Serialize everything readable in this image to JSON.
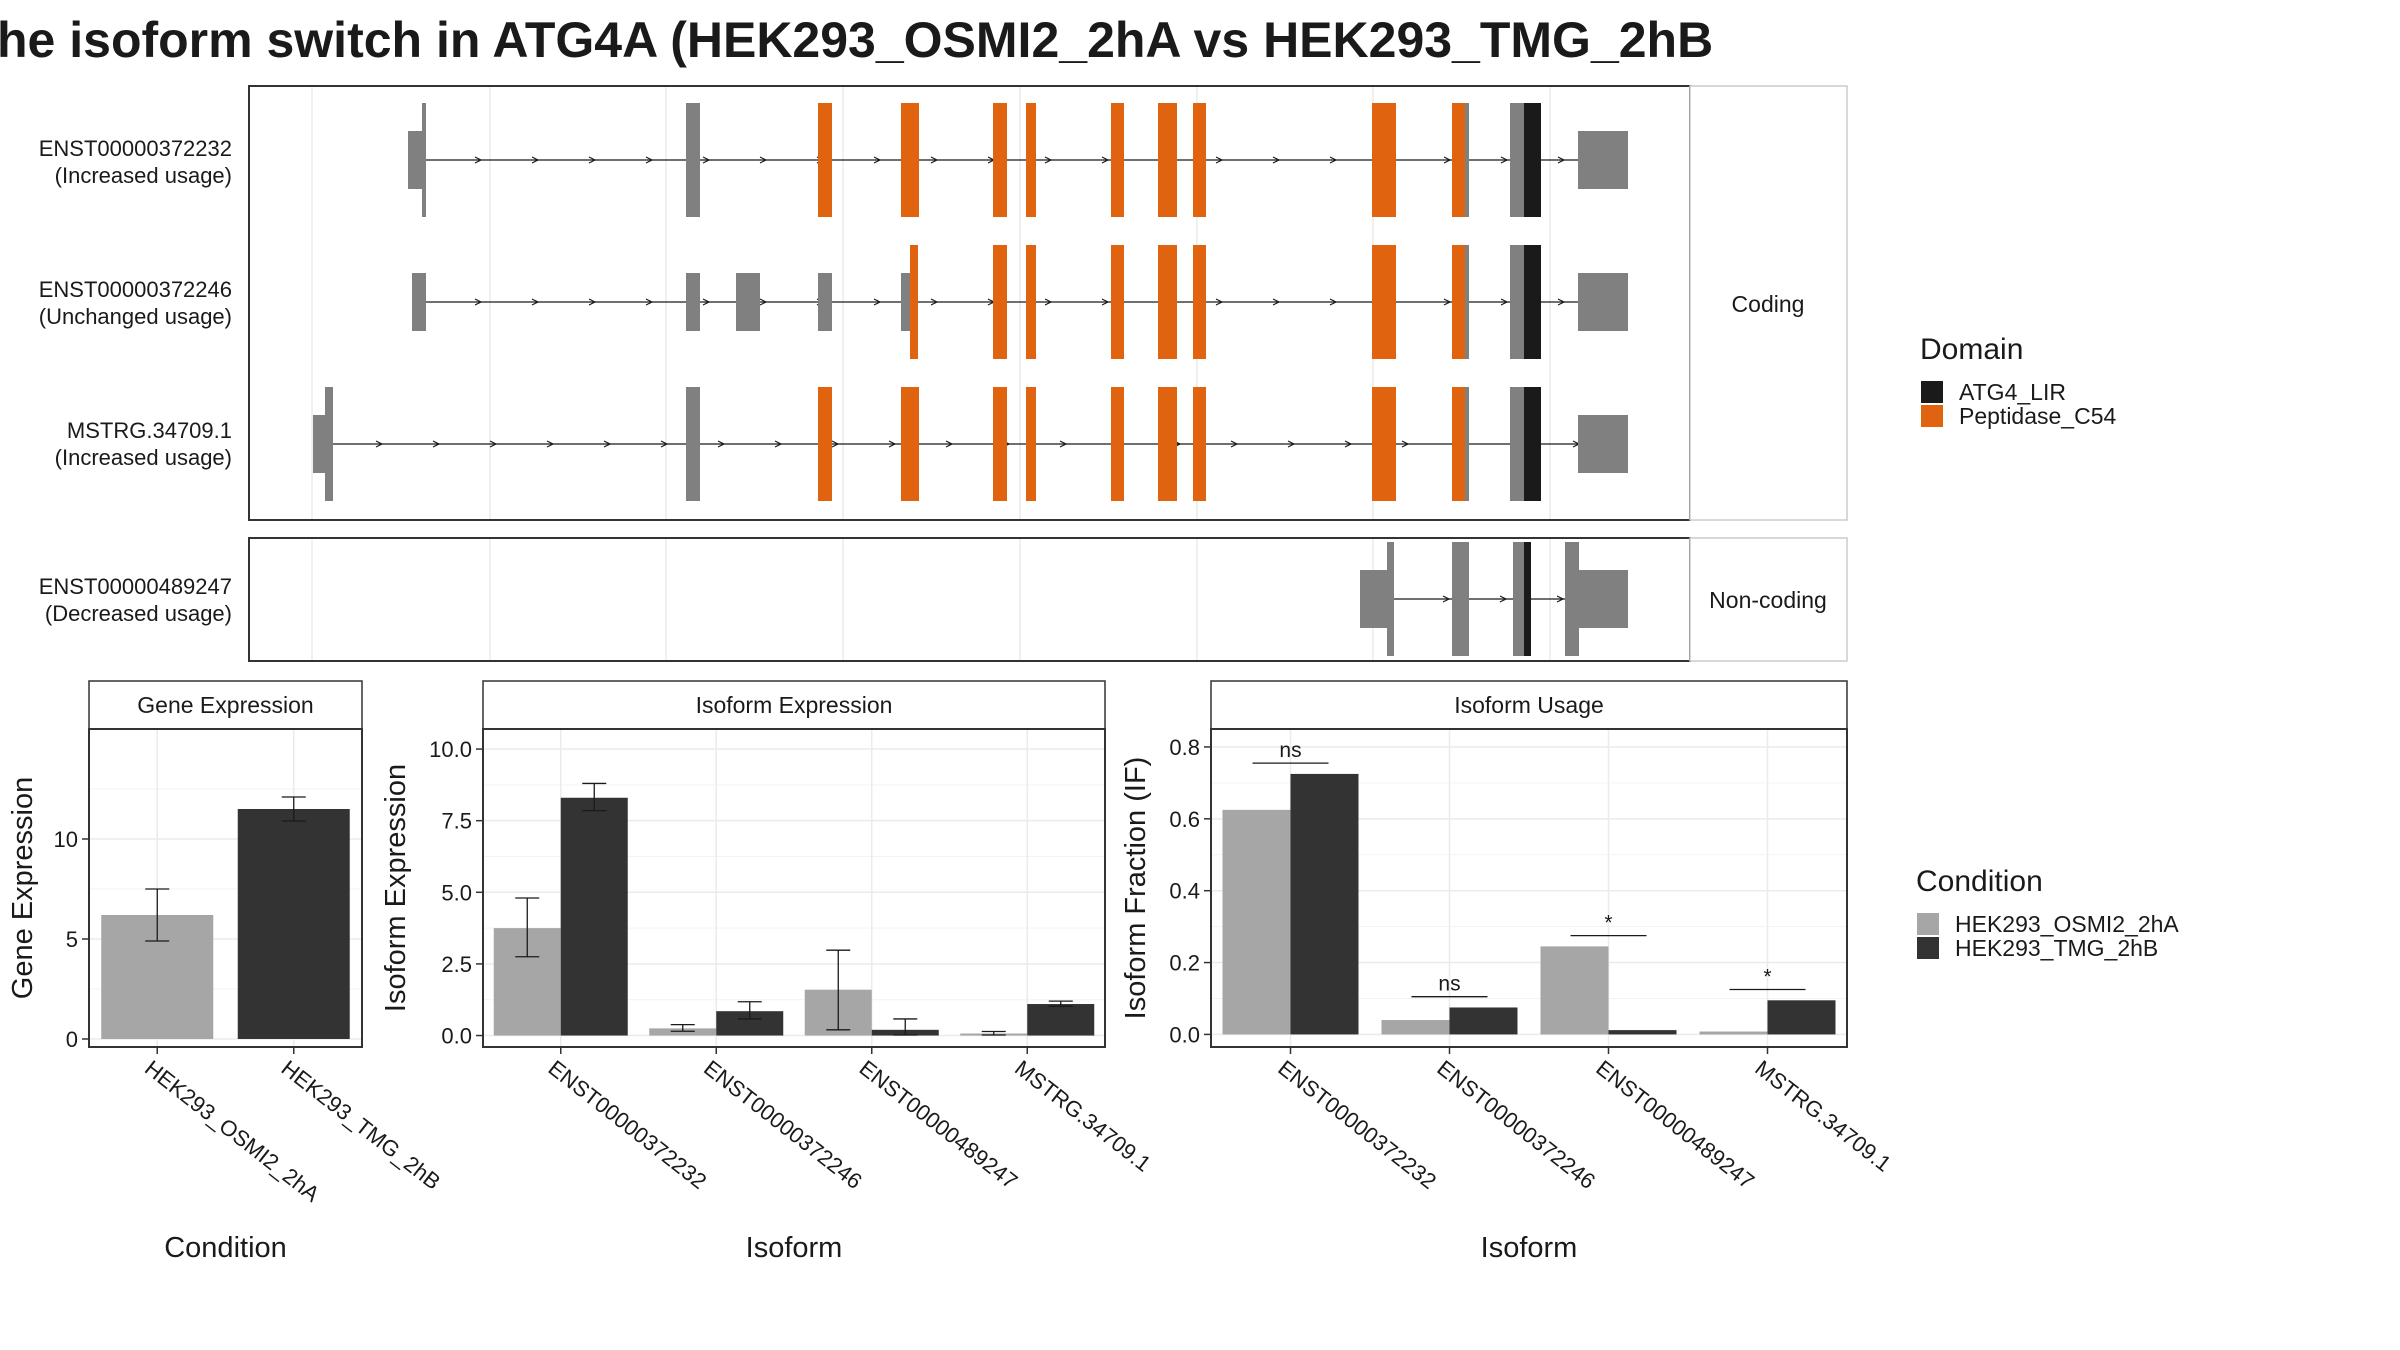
{
  "title": "he isoform switch in ATG4A (HEK293_OSMI2_2hA vs HEK293_TMG_2hB",
  "colors": {
    "domain_ATG4_LIR": "#1a1a1a",
    "domain_Peptidase_C54": "#e0640f",
    "no_domain": "#808080",
    "condition_a": "#a6a6a6",
    "condition_b": "#333333"
  },
  "chart_data": [
    {
      "type": "gene_structure",
      "panels": [
        {
          "strip": "Coding",
          "transcripts": [
            "ENST00000372232",
            "ENST00000372246",
            "MSTRG.34709.1"
          ]
        },
        {
          "strip": "Non-coding",
          "transcripts": [
            "ENST00000489247"
          ]
        }
      ],
      "transcripts": [
        {
          "id": "ENST00000372232",
          "usage": "(Increased usage)"
        },
        {
          "id": "ENST00000372246",
          "usage": "(Unchanged usage)"
        },
        {
          "id": "MSTRG.34709.1",
          "usage": "(Increased usage)"
        },
        {
          "id": "ENST00000489247",
          "usage": "(Decreased usage)"
        }
      ],
      "legend": {
        "title": "Domain",
        "items": [
          "ATG4_LIR",
          "Peptidase_C54"
        ],
        "placement": "right"
      }
    },
    {
      "type": "bar",
      "strip": "Gene Expression",
      "categories": [
        "HEK293_OSMI2_2hA",
        "HEK293_TMG_2hB"
      ],
      "values": [
        6.2,
        11.5
      ],
      "errors": [
        [
          4.9,
          7.5
        ],
        [
          10.9,
          12.1
        ]
      ],
      "xlabel": "Condition",
      "ylabel": "Gene Expression",
      "ylim": [
        -0.4,
        15.5
      ],
      "yticks": [
        "0",
        "5",
        "10"
      ]
    },
    {
      "type": "bar",
      "strip": "Isoform Expression",
      "categories": [
        "ENST00000372232",
        "ENST00000372246",
        "ENST00000489247",
        "MSTRG.34709.1"
      ],
      "series": [
        {
          "name": "HEK293_OSMI2_2hA",
          "values": [
            3.75,
            0.25,
            1.6,
            0.07
          ],
          "errors": [
            [
              2.75,
              4.8
            ],
            [
              0.15,
              0.38
            ],
            [
              0.2,
              2.98
            ],
            [
              0.02,
              0.14
            ]
          ]
        },
        {
          "name": "HEK293_TMG_2hB",
          "values": [
            8.3,
            0.85,
            0.2,
            1.1
          ],
          "errors": [
            [
              7.85,
              8.8
            ],
            [
              0.58,
              1.18
            ],
            [
              0.02,
              0.58
            ],
            [
              1.02,
              1.2
            ]
          ]
        }
      ],
      "xlabel": "Isoform",
      "ylabel": "Isoform Expression",
      "ylim": [
        -0.4,
        10.7
      ],
      "yticks": [
        "0.0",
        "2.5",
        "5.0",
        "7.5",
        "10.0"
      ]
    },
    {
      "type": "bar",
      "strip": "Isoform Usage",
      "categories": [
        "ENST00000372232",
        "ENST00000372246",
        "ENST00000489247",
        "MSTRG.34709.1"
      ],
      "series": [
        {
          "name": "HEK293_OSMI2_2hA",
          "values": [
            0.625,
            0.04,
            0.245,
            0.008
          ]
        },
        {
          "name": "HEK293_TMG_2hB",
          "values": [
            0.725,
            0.075,
            0.012,
            0.095
          ]
        }
      ],
      "significance": [
        "ns",
        "ns",
        "*",
        "*"
      ],
      "xlabel": "Isoform",
      "ylabel": "Isoform Fraction (IF)",
      "ylim": [
        -0.035,
        0.85
      ],
      "yticks": [
        "0.0",
        "0.2",
        "0.4",
        "0.6",
        "0.8"
      ]
    }
  ],
  "condition_legend": {
    "title": "Condition",
    "items": [
      "HEK293_OSMI2_2hA",
      "HEK293_TMG_2hB"
    ]
  }
}
